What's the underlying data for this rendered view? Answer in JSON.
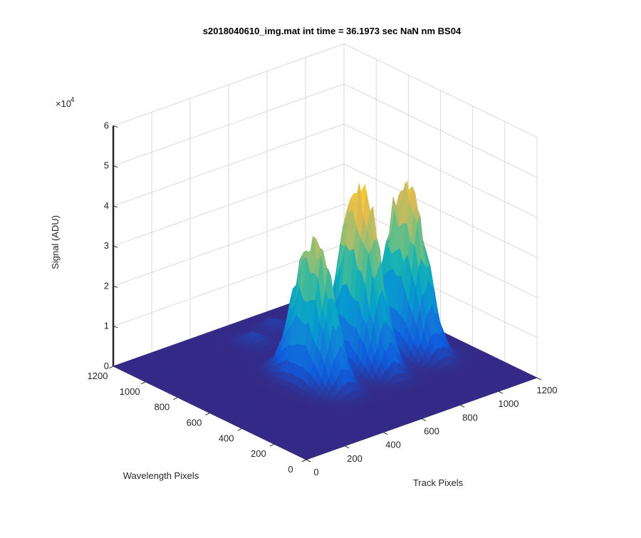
{
  "chart_data": {
    "type": "surface",
    "title": "s2018040610_img.mat int time = 36.1973 sec  NaN nm BS04",
    "xlabel": "Track Pixels",
    "ylabel": "Wavelength Pixels",
    "zlabel": "Signal (ADU)",
    "z_exponent_label": "×10",
    "z_exponent_power": "4",
    "xlim": [
      0,
      1200
    ],
    "ylim": [
      0,
      1200
    ],
    "zlim": [
      0,
      60000
    ],
    "x_ticks": [
      "0",
      "200",
      "400",
      "600",
      "800",
      "1000",
      "1200"
    ],
    "y_ticks": [
      "0",
      "200",
      "400",
      "600",
      "800",
      "1000",
      "1200"
    ],
    "z_ticks": [
      "0",
      "1",
      "2",
      "3",
      "4",
      "5",
      "6"
    ],
    "grid": true,
    "colormap": "parula",
    "peaks": [
      {
        "track_center": 510,
        "wavelength_center": 560,
        "peak_signal": 35000
      },
      {
        "track_center": 750,
        "wavelength_center": 560,
        "peak_signal": 44000
      },
      {
        "track_center": 990,
        "wavelength_center": 560,
        "peak_signal": 41000
      }
    ],
    "minor_features": [
      {
        "track_center": 560,
        "wavelength_center": 1000,
        "peak_signal": 2500
      },
      {
        "track_center": 720,
        "wavelength_center": 1050,
        "peak_signal": 2000
      }
    ]
  }
}
